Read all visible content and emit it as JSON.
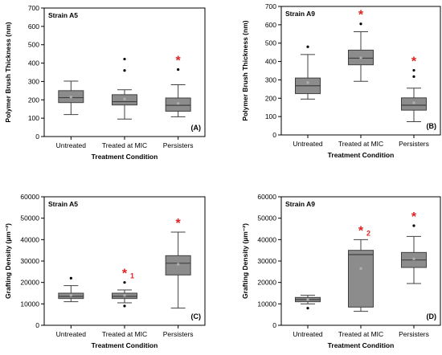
{
  "chart_data": [
    {
      "type": "box",
      "panel_label": "(A)",
      "annotation": "Strain A5",
      "ylabel": "Polymer Brush Thickness (nm)",
      "xlabel": "Treatment Condition",
      "categories": [
        "Untreated",
        "Treated at MIC",
        "Persisters"
      ],
      "ylim": [
        0,
        700
      ],
      "yticks": [
        0,
        100,
        200,
        300,
        400,
        500,
        600,
        700
      ],
      "boxes": [
        {
          "category": "Untreated",
          "whisker_low": 120,
          "q1": 185,
          "median": 212,
          "q3": 250,
          "whisker_high": 302,
          "mean": 215,
          "outliers": [],
          "significance": ""
        },
        {
          "category": "Treated at MIC",
          "whisker_low": 95,
          "q1": 172,
          "median": 190,
          "q3": 228,
          "whisker_high": 255,
          "mean": 205,
          "outliers": [
            360,
            422
          ],
          "significance": ""
        },
        {
          "category": "Persisters",
          "whisker_low": 108,
          "q1": 138,
          "median": 170,
          "q3": 210,
          "whisker_high": 282,
          "mean": 180,
          "outliers": [
            365
          ],
          "significance": "*"
        }
      ]
    },
    {
      "type": "box",
      "panel_label": "(B)",
      "annotation": "Strain A9",
      "ylabel": "Polymer Brush Thickness (nm)",
      "xlabel": "Treatment Condition",
      "categories": [
        "Untreated",
        "Treated at MIC",
        "Persisters"
      ],
      "ylim": [
        0,
        700
      ],
      "yticks": [
        0,
        100,
        200,
        300,
        400,
        500,
        600,
        700
      ],
      "boxes": [
        {
          "category": "Untreated",
          "whisker_low": 195,
          "q1": 225,
          "median": 268,
          "q3": 310,
          "whisker_high": 438,
          "mean": 285,
          "outliers": [
            480
          ],
          "significance": ""
        },
        {
          "category": "Treated at MIC",
          "whisker_low": 292,
          "q1": 382,
          "median": 418,
          "q3": 462,
          "whisker_high": 562,
          "mean": 420,
          "outliers": [
            605
          ],
          "significance": "*"
        },
        {
          "category": "Persisters",
          "whisker_low": 72,
          "q1": 135,
          "median": 162,
          "q3": 202,
          "whisker_high": 255,
          "mean": 175,
          "outliers": [
            318,
            352
          ],
          "significance": "*"
        }
      ]
    },
    {
      "type": "box",
      "panel_label": "(C)",
      "annotation": "Strain A5",
      "ylabel": "Grafting Density (µm⁻²)",
      "xlabel": "Treatment Condition",
      "categories": [
        "Untreated",
        "Treated at MIC",
        "Persisters"
      ],
      "ylim": [
        0,
        60000
      ],
      "yticks": [
        0,
        10000,
        20000,
        30000,
        40000,
        50000,
        60000
      ],
      "boxes": [
        {
          "category": "Untreated",
          "whisker_low": 11000,
          "q1": 12500,
          "median": 13500,
          "q3": 15000,
          "whisker_high": 18500,
          "mean": 14000,
          "outliers": [
            22000
          ],
          "significance": ""
        },
        {
          "category": "Treated at MIC",
          "whisker_low": 10500,
          "q1": 12500,
          "median": 13500,
          "q3": 15000,
          "whisker_high": 16500,
          "mean": 14000,
          "outliers": [
            20000,
            9000
          ],
          "significance": "*",
          "significance_sub": "1"
        },
        {
          "category": "Persisters",
          "whisker_low": 8000,
          "q1": 23500,
          "median": 29000,
          "q3": 32500,
          "whisker_high": 43500,
          "mean": 28500,
          "outliers": [],
          "significance": "*"
        }
      ]
    },
    {
      "type": "box",
      "panel_label": "(D)",
      "annotation": "Strain A9",
      "ylabel": "Grafting Density (µm⁻²)",
      "xlabel": "Treatment Condition",
      "categories": [
        "Untreated",
        "Treated at MIC",
        "Persisters"
      ],
      "ylim": [
        0,
        60000
      ],
      "yticks": [
        0,
        10000,
        20000,
        30000,
        40000,
        50000,
        60000
      ],
      "boxes": [
        {
          "category": "Untreated",
          "whisker_low": 10000,
          "q1": 11000,
          "median": 12000,
          "q3": 13000,
          "whisker_high": 14000,
          "mean": 12000,
          "outliers": [
            8000
          ],
          "significance": ""
        },
        {
          "category": "Treated at MIC",
          "whisker_low": 6500,
          "q1": 8500,
          "median": 33000,
          "q3": 35000,
          "whisker_high": 40000,
          "mean": 26500,
          "outliers": [],
          "significance": "*",
          "significance_sub": "2"
        },
        {
          "category": "Persisters",
          "whisker_low": 19500,
          "q1": 27000,
          "median": 30500,
          "q3": 34000,
          "whisker_high": 41500,
          "mean": 31000,
          "outliers": [
            46500
          ],
          "significance": "*"
        }
      ]
    }
  ],
  "style": {
    "box_fill": "#8c8c8c",
    "box_stroke": "#404040",
    "mean_marker": "#b0b0b0",
    "axis_color": "#000000",
    "significance_color": "#e02020"
  }
}
